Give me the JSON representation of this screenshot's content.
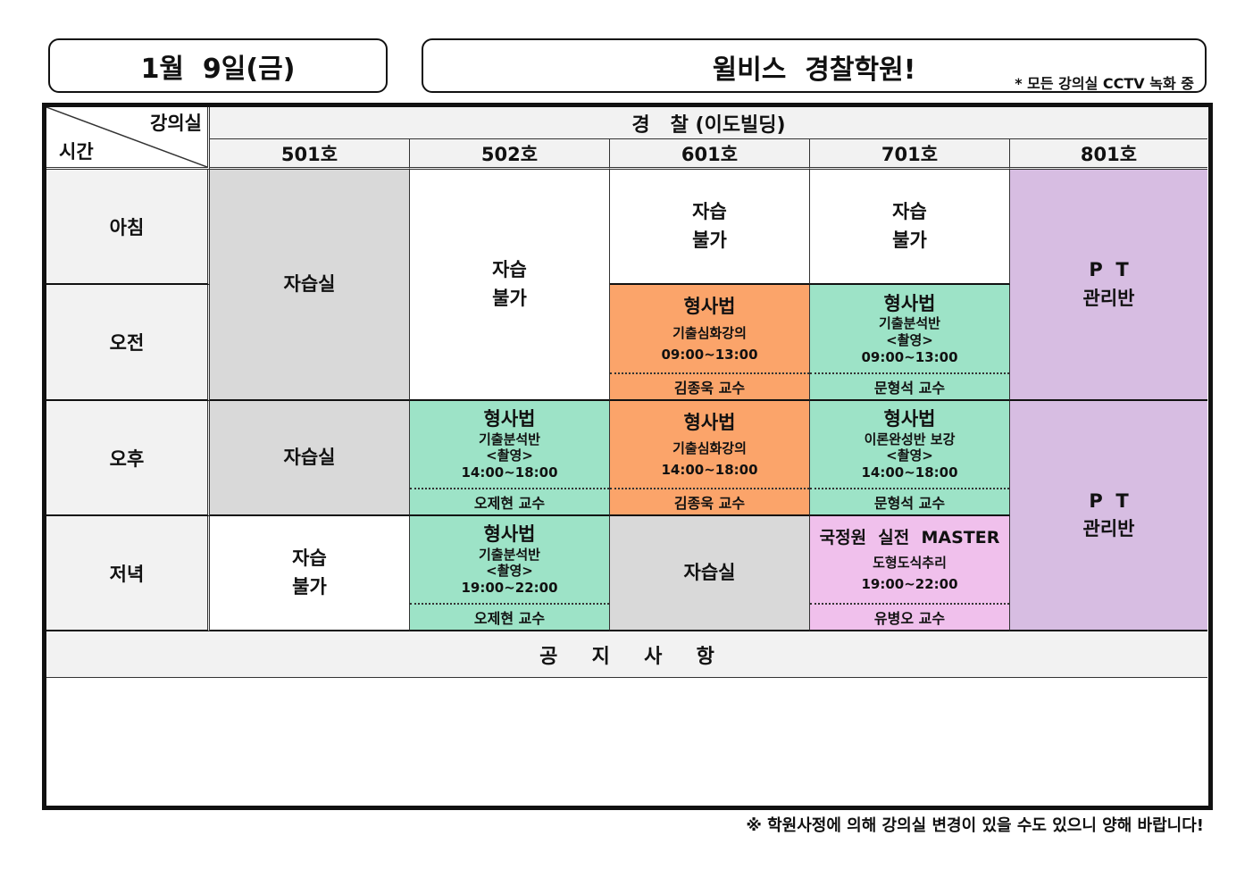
{
  "header": {
    "date": "1월  9일(금)",
    "title": "윌비스  경찰학원!",
    "cctv_note": "* 모든 강의실 CCTV 녹화 중"
  },
  "table": {
    "corner_top": "강의실",
    "corner_bottom": "시간",
    "building": "경   찰 (이도빌딩)",
    "rooms": [
      "501호",
      "502호",
      "601호",
      "701호",
      "801호"
    ],
    "times": [
      "아침",
      "오전",
      "오후",
      "저녁"
    ],
    "cells": {
      "r501_am": "자습실",
      "r501_pm": "자습실",
      "r501_ev": [
        "자습",
        "불가"
      ],
      "r502_am": [
        "자습",
        "불가"
      ],
      "r502_pm": {
        "title": "형사법",
        "sub": "기출분석반",
        "note": "<촬영>",
        "time": "14:00~18:00",
        "prof": "오제현  교수"
      },
      "r502_ev": {
        "title": "형사법",
        "sub": "기출분석반",
        "note": "<촬영>",
        "time": "19:00~22:00",
        "prof": "오제현  교수"
      },
      "r601_morning": [
        "자습",
        "불가"
      ],
      "r601_am": {
        "title": "형사법",
        "sub": "기출심화강의",
        "time": "09:00~13:00",
        "prof": "김종욱  교수"
      },
      "r601_pm": {
        "title": "형사법",
        "sub": "기출심화강의",
        "time": "14:00~18:00",
        "prof": "김종욱  교수"
      },
      "r601_ev": "자습실",
      "r701_morning": [
        "자습",
        "불가"
      ],
      "r701_am": {
        "title": "형사법",
        "sub": "기출분석반",
        "note": "<촬영>",
        "time": "09:00~13:00",
        "prof": "문형석  교수"
      },
      "r701_pm": {
        "title": "형사법",
        "sub": "이론완성반 보강",
        "note": "<촬영>",
        "time": "14:00~18:00",
        "prof": "문형석  교수"
      },
      "r701_ev": {
        "title": "국정원  실전  MASTER",
        "sub": "도형도식추리",
        "time": "19:00~22:00",
        "prof": "유병오  교수"
      },
      "r801_am": [
        "P  T",
        "관리반"
      ],
      "r801_pm": [
        "P  T",
        "관리반"
      ]
    },
    "notice_title": "공     지     사     항"
  },
  "footer": "※  학원사정에 의해 강의실 변경이 있을 수도 있으니 양해 바랍니다!",
  "colors": {
    "gray": "#d9d9d9",
    "green": "#9de3c7",
    "orange": "#fba46a",
    "pink": "#f0c0ec",
    "purple": "#d7bde2"
  }
}
